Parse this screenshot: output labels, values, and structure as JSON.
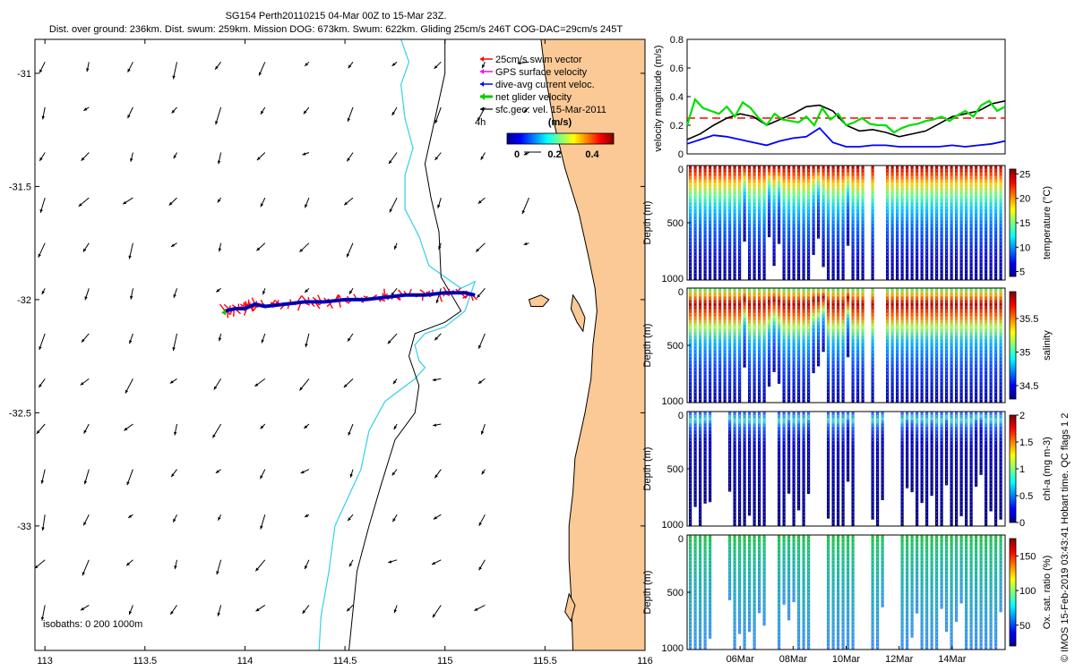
{
  "header": {
    "title_line1": "SG154 Perth20110215 04-Mar 00Z to 15-Mar 23Z.",
    "title_line2": "Dist. over ground: 236km. Dist. swum: 259km. Mission DOG: 673km. Swum: 622km. Gliding 25cm/s 246T COG-DAC=29cm/s 245T"
  },
  "side_label": "© IMOS 15-Feb-2019 03:43:41 Hobart time. QC flags 1  2",
  "colors": {
    "land": "#fbc995",
    "coast": "#000000",
    "isobath_200": "#33d0e6",
    "isobath_1000": "#000000",
    "swim": "#ff0000",
    "gps": "#ff00ff",
    "dac": "#0000ff",
    "net": "#00cc00",
    "sfcgeo": "#000000"
  },
  "chart_data": [
    {
      "type": "map",
      "xlim": [
        112.95,
        116.0
      ],
      "ylim": [
        -33.55,
        -30.85
      ],
      "x_ticks": [
        113,
        113.5,
        114,
        114.5,
        115,
        115.5,
        116
      ],
      "y_ticks": [
        -31,
        -31.5,
        -32,
        -32.5,
        -33
      ],
      "legend": {
        "items": [
          {
            "label": "25cm/s swim vector",
            "color": "#ff0000"
          },
          {
            "label": "GPS surface velocity",
            "color": "#ff00ff"
          },
          {
            "label": "dive-avg current veloc.",
            "color": "#0000ff"
          },
          {
            "label": "net glider velocity",
            "color": "#00cc00"
          },
          {
            "label": "sfc.geo. vel. 15-Mar-2011",
            "color": "#000000"
          }
        ],
        "scale_label": "4h",
        "colorbar_title": "(m/s)",
        "colorbar_ticks": [
          "0",
          "0.2",
          "0.4"
        ]
      },
      "isobath_label": "isobaths: 0   200  1000m",
      "coast": [
        [
          116.0,
          -30.85
        ],
        [
          115.48,
          -30.85
        ],
        [
          115.5,
          -31.0
        ],
        [
          115.54,
          -31.2
        ],
        [
          115.6,
          -31.42
        ],
        [
          115.67,
          -31.62
        ],
        [
          115.72,
          -31.82
        ],
        [
          115.75,
          -31.95
        ],
        [
          115.76,
          -32.05
        ],
        [
          115.74,
          -32.2
        ],
        [
          115.73,
          -32.35
        ],
        [
          115.7,
          -32.5
        ],
        [
          115.68,
          -32.58
        ],
        [
          115.65,
          -32.7
        ],
        [
          115.64,
          -32.85
        ],
        [
          115.62,
          -33.0
        ],
        [
          115.62,
          -33.15
        ],
        [
          115.63,
          -33.3
        ],
        [
          115.64,
          -33.55
        ],
        [
          116.0,
          -33.55
        ]
      ],
      "islands": [
        [
          [
            115.42,
            -32.0
          ],
          [
            115.48,
            -31.98
          ],
          [
            115.52,
            -32.0
          ],
          [
            115.49,
            -32.03
          ],
          [
            115.43,
            -32.03
          ]
        ],
        [
          [
            115.64,
            -31.98
          ],
          [
            115.67,
            -32.02
          ],
          [
            115.7,
            -32.08
          ],
          [
            115.69,
            -32.14
          ],
          [
            115.66,
            -32.1
          ],
          [
            115.63,
            -32.04
          ]
        ],
        [
          [
            115.62,
            -33.3
          ],
          [
            115.6,
            -33.38
          ],
          [
            115.63,
            -33.42
          ],
          [
            115.65,
            -33.35
          ]
        ]
      ],
      "isobath_1000": [
        [
          115.0,
          -30.85
        ],
        [
          115.0,
          -31.0
        ],
        [
          114.95,
          -31.2
        ],
        [
          114.9,
          -31.4
        ],
        [
          114.93,
          -31.55
        ],
        [
          114.97,
          -31.7
        ],
        [
          114.98,
          -31.9
        ],
        [
          115.08,
          -32.05
        ],
        [
          115.0,
          -32.1
        ],
        [
          114.85,
          -32.15
        ],
        [
          114.82,
          -32.25
        ],
        [
          114.87,
          -32.38
        ],
        [
          114.85,
          -32.5
        ],
        [
          114.75,
          -32.62
        ],
        [
          114.68,
          -32.82
        ],
        [
          114.62,
          -33.0
        ],
        [
          114.56,
          -33.2
        ],
        [
          114.52,
          -33.55
        ]
      ],
      "isobath_200": [
        [
          114.78,
          -30.85
        ],
        [
          114.82,
          -30.95
        ],
        [
          114.78,
          -31.05
        ],
        [
          114.8,
          -31.2
        ],
        [
          114.84,
          -31.33
        ],
        [
          114.8,
          -31.45
        ],
        [
          114.8,
          -31.6
        ],
        [
          114.87,
          -31.72
        ],
        [
          114.92,
          -31.85
        ],
        [
          115.08,
          -31.95
        ],
        [
          115.15,
          -31.92
        ],
        [
          115.1,
          -32.05
        ],
        [
          115.0,
          -32.12
        ],
        [
          114.9,
          -32.15
        ],
        [
          114.85,
          -32.2
        ],
        [
          114.87,
          -32.27
        ],
        [
          114.9,
          -32.3
        ],
        [
          114.85,
          -32.35
        ],
        [
          114.7,
          -32.45
        ],
        [
          114.62,
          -32.58
        ],
        [
          114.58,
          -32.75
        ],
        [
          114.45,
          -33.0
        ],
        [
          114.42,
          -33.2
        ],
        [
          114.38,
          -33.4
        ],
        [
          114.37,
          -33.55
        ]
      ],
      "track": [
        [
          113.9,
          -32.05
        ],
        [
          113.95,
          -32.04
        ],
        [
          114.0,
          -32.04
        ],
        [
          114.05,
          -32.02
        ],
        [
          114.1,
          -32.03
        ],
        [
          114.2,
          -32.02
        ],
        [
          114.3,
          -32.01
        ],
        [
          114.4,
          -32.01
        ],
        [
          114.5,
          -32.0
        ],
        [
          114.6,
          -32.0
        ],
        [
          114.7,
          -31.99
        ],
        [
          114.8,
          -31.98
        ],
        [
          114.9,
          -31.98
        ],
        [
          115.0,
          -31.97
        ],
        [
          115.1,
          -31.97
        ],
        [
          115.15,
          -31.98
        ]
      ]
    },
    {
      "type": "line",
      "ylabel": "velocity magnitude (m/s)",
      "xlim": [
        4.0,
        16.0
      ],
      "ylim": [
        0,
        0.8
      ],
      "y_ticks": [
        0,
        0.2,
        0.4,
        0.6,
        0.8
      ],
      "swim_reference": 0.25,
      "series": [
        {
          "color": "#000000",
          "x": [
            4.0,
            4.5,
            5.0,
            5.5,
            6.0,
            6.5,
            7.0,
            7.5,
            8.0,
            8.5,
            9.0,
            9.5,
            10.0,
            10.5,
            11.0,
            11.5,
            12.0,
            12.5,
            13.0,
            13.5,
            14.0,
            14.5,
            15.0,
            15.5,
            16.0
          ],
          "y": [
            0.1,
            0.14,
            0.2,
            0.25,
            0.28,
            0.26,
            0.2,
            0.24,
            0.28,
            0.33,
            0.34,
            0.3,
            0.2,
            0.16,
            0.17,
            0.15,
            0.12,
            0.14,
            0.16,
            0.21,
            0.26,
            0.28,
            0.3,
            0.35,
            0.37
          ]
        },
        {
          "color": "#0000ff",
          "x": [
            4.0,
            4.5,
            5.0,
            5.5,
            6.0,
            6.5,
            7.0,
            7.5,
            8.0,
            8.5,
            9.0,
            9.5,
            10.0,
            10.5,
            11.0,
            11.5,
            12.0,
            12.5,
            13.0,
            13.5,
            14.0,
            14.5,
            15.0,
            15.5,
            16.0
          ],
          "y": [
            0.07,
            0.1,
            0.13,
            0.12,
            0.1,
            0.08,
            0.06,
            0.09,
            0.11,
            0.12,
            0.18,
            0.08,
            0.05,
            0.05,
            0.06,
            0.06,
            0.05,
            0.05,
            0.05,
            0.05,
            0.06,
            0.05,
            0.06,
            0.07,
            0.09
          ]
        },
        {
          "color": "#00dd00",
          "x": [
            4.0,
            4.3,
            4.6,
            4.9,
            5.2,
            5.5,
            5.8,
            6.1,
            6.4,
            6.7,
            7.0,
            7.3,
            7.6,
            7.9,
            8.2,
            8.5,
            8.8,
            9.1,
            9.4,
            9.7,
            10.0,
            10.3,
            10.6,
            10.9,
            11.2,
            11.5,
            11.8,
            12.1,
            12.4,
            12.7,
            13.0,
            13.3,
            13.6,
            13.9,
            14.2,
            14.5,
            14.8,
            15.1,
            15.4,
            15.7,
            16.0
          ],
          "y": [
            0.2,
            0.38,
            0.32,
            0.3,
            0.28,
            0.33,
            0.26,
            0.36,
            0.32,
            0.25,
            0.2,
            0.28,
            0.24,
            0.23,
            0.22,
            0.26,
            0.2,
            0.32,
            0.24,
            0.28,
            0.2,
            0.22,
            0.25,
            0.21,
            0.2,
            0.2,
            0.15,
            0.18,
            0.2,
            0.21,
            0.23,
            0.24,
            0.26,
            0.23,
            0.27,
            0.3,
            0.26,
            0.34,
            0.37,
            0.3,
            0.33
          ]
        }
      ]
    },
    {
      "type": "heatmap",
      "ylabel": "Depth (m)",
      "ylim": [
        0,
        1000
      ],
      "y_ticks": [
        0,
        500,
        1000
      ],
      "colorbar_label": "temperature (°C)",
      "colorbar_ticks": [
        "5",
        "10",
        "15",
        "20",
        "25"
      ],
      "clim": [
        4,
        26
      ]
    },
    {
      "type": "heatmap",
      "ylabel": "Depth (m)",
      "ylim": [
        0,
        1000
      ],
      "y_ticks": [
        0,
        500,
        1000
      ],
      "colorbar_label": "salinity",
      "colorbar_ticks": [
        "34.5",
        "35",
        "35.5"
      ],
      "clim": [
        34.3,
        35.9
      ]
    },
    {
      "type": "heatmap",
      "ylabel": "Depth (m)",
      "ylim": [
        0,
        1000
      ],
      "y_ticks": [
        0,
        500,
        1000
      ],
      "colorbar_label": "chl-a (mg m-3)",
      "colorbar_ticks": [
        "0",
        "0.5",
        "1",
        "1.5",
        "2"
      ],
      "clim": [
        0,
        2
      ]
    },
    {
      "type": "heatmap",
      "ylabel": "Depth (m)",
      "ylim": [
        0,
        1000
      ],
      "y_ticks": [
        0,
        500,
        1000
      ],
      "colorbar_label": "Ox. sat. ratio (%)",
      "colorbar_ticks": [
        "50",
        "100",
        "150"
      ],
      "clim": [
        20,
        175
      ],
      "x_tick_labels": [
        "06Mar",
        "08Mar",
        "10Mar",
        "12Mar",
        "14Mar"
      ]
    }
  ]
}
